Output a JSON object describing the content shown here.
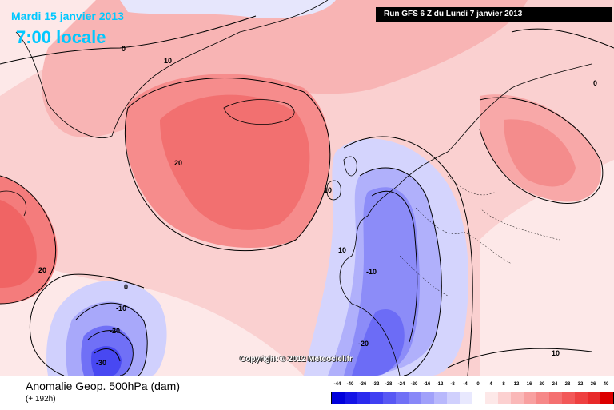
{
  "header": {
    "valid_date": "Mardi 15 janvier 2013",
    "valid_hour": "7:00 locale",
    "run": "Run GFS 6 Z du Lundi 7 janvier 2013"
  },
  "map": {
    "copyright": "Copyright © 2012 Meteociel.fr",
    "contour_labels": [
      "0",
      "10",
      "20",
      "10",
      "20",
      "0",
      "10",
      "0",
      "-10",
      "-20",
      "-30",
      "-10",
      "-20",
      "10"
    ]
  },
  "footer": {
    "title": "Anomalie Geop. 500hPa (dam)",
    "lead_time": "(+ 192h)"
  },
  "scale": {
    "labels": [
      "-44",
      "-40",
      "-36",
      "-32",
      "-28",
      "-24",
      "-20",
      "-16",
      "-12",
      "-8",
      "-4",
      "0",
      "4",
      "8",
      "12",
      "16",
      "20",
      "24",
      "28",
      "32",
      "36",
      "40"
    ],
    "colors": [
      "#0000dc",
      "#1414e6",
      "#2a2aee",
      "#4040f2",
      "#5858f4",
      "#7070f6",
      "#8888f8",
      "#a0a0fa",
      "#b8b8fc",
      "#d0d0fd",
      "#e8e8fe",
      "#ffffff",
      "#fde8e8",
      "#fcd0d0",
      "#fab8b8",
      "#f8a0a0",
      "#f68888",
      "#f47070",
      "#f25858",
      "#ee4040",
      "#e82a2a",
      "#dc0000"
    ]
  },
  "colors": {
    "date_text": "#00c8ff",
    "positive_anomaly": "#f47070",
    "negative_anomaly": "#7070f6"
  }
}
